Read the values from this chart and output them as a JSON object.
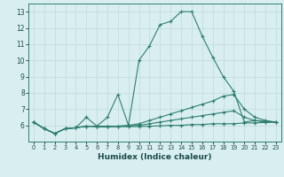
{
  "xlabel": "Humidex (Indice chaleur)",
  "xlim": [
    -0.5,
    23.5
  ],
  "ylim": [
    5.0,
    13.5
  ],
  "yticks": [
    6,
    7,
    8,
    9,
    10,
    11,
    12,
    13
  ],
  "xticks": [
    0,
    1,
    2,
    3,
    4,
    5,
    6,
    7,
    8,
    9,
    10,
    11,
    12,
    13,
    14,
    15,
    16,
    17,
    18,
    19,
    20,
    21,
    22,
    23
  ],
  "bg_color": "#d9efef",
  "grid_color": "#c2dcdc",
  "line_color": "#2e7d6e",
  "lines": [
    {
      "x": [
        0,
        1,
        2,
        3,
        4,
        5,
        6,
        7,
        8,
        9,
        10,
        11,
        12,
        13,
        14,
        15,
        16,
        17,
        18,
        19,
        20,
        21,
        22,
        23
      ],
      "y": [
        6.2,
        5.8,
        5.5,
        5.8,
        5.85,
        6.5,
        5.95,
        6.5,
        7.9,
        6.0,
        10.0,
        10.9,
        12.2,
        12.4,
        13.0,
        13.0,
        11.5,
        10.2,
        9.0,
        8.1,
        6.2,
        6.3,
        6.2,
        6.2
      ]
    },
    {
      "x": [
        0,
        1,
        2,
        3,
        4,
        5,
        6,
        7,
        8,
        9,
        10,
        11,
        12,
        13,
        14,
        15,
        16,
        17,
        18,
        19,
        20,
        21,
        22,
        23
      ],
      "y": [
        6.2,
        5.8,
        5.5,
        5.8,
        5.85,
        5.95,
        5.95,
        5.95,
        5.95,
        6.0,
        6.1,
        6.3,
        6.5,
        6.7,
        6.9,
        7.1,
        7.3,
        7.5,
        7.8,
        7.9,
        7.0,
        6.5,
        6.3,
        6.2
      ]
    },
    {
      "x": [
        0,
        1,
        2,
        3,
        4,
        5,
        6,
        7,
        8,
        9,
        10,
        11,
        12,
        13,
        14,
        15,
        16,
        17,
        18,
        19,
        20,
        21,
        22,
        23
      ],
      "y": [
        6.2,
        5.8,
        5.5,
        5.8,
        5.85,
        5.95,
        5.95,
        5.95,
        5.95,
        5.97,
        6.0,
        6.1,
        6.2,
        6.3,
        6.4,
        6.5,
        6.6,
        6.7,
        6.8,
        6.9,
        6.5,
        6.3,
        6.25,
        6.2
      ]
    },
    {
      "x": [
        0,
        1,
        2,
        3,
        4,
        5,
        6,
        7,
        8,
        9,
        10,
        11,
        12,
        13,
        14,
        15,
        16,
        17,
        18,
        19,
        20,
        21,
        22,
        23
      ],
      "y": [
        6.2,
        5.8,
        5.5,
        5.8,
        5.85,
        5.95,
        5.9,
        5.9,
        5.92,
        5.92,
        5.93,
        5.95,
        5.97,
        6.0,
        6.0,
        6.05,
        6.05,
        6.1,
        6.1,
        6.1,
        6.15,
        6.15,
        6.18,
        6.2
      ]
    }
  ]
}
